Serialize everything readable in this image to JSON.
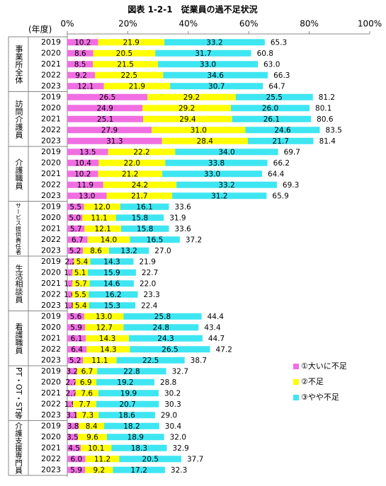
{
  "chart_data": {
    "type": "bar",
    "orientation": "horizontal",
    "stacked": true,
    "title": "図表 1-2-1　従業員の過不足状況",
    "category_label": "(年度)",
    "xlim": [
      0,
      100
    ],
    "xticks": [
      {
        "value": 0,
        "label": "0%"
      },
      {
        "value": 20,
        "label": "20%"
      },
      {
        "value": 40,
        "label": "40%"
      },
      {
        "value": 60,
        "label": "60%"
      },
      {
        "value": 80,
        "label": "80%"
      },
      {
        "value": 100,
        "label": "100%"
      }
    ],
    "legend": "lower right",
    "series": [
      {
        "name": "①大いに不足",
        "color": "#f06ee2"
      },
      {
        "name": "②不足",
        "color": "#ffff00"
      },
      {
        "name": "③やや不足",
        "color": "#3ee6f2"
      }
    ],
    "groups": [
      {
        "name": "事業所全体",
        "categories": [
          "2019",
          "2020",
          "2021",
          "2022",
          "2023"
        ],
        "series": [
          {
            "values": [
              10.2,
              8.6,
              8.5,
              9.2,
              12.1
            ],
            "value_labels": [
              "10.2",
              "8.6",
              "8.5",
              "9.2",
              "12.1"
            ]
          },
          {
            "values": [
              21.9,
              20.5,
              21.5,
              22.5,
              21.9
            ],
            "value_labels": [
              "21.9",
              "20.5",
              "21.5",
              "22.5",
              "21.9"
            ]
          },
          {
            "values": [
              33.2,
              31.7,
              33.0,
              34.6,
              30.7
            ],
            "value_labels": [
              "33.2",
              "31.7",
              "33.0",
              "34.6",
              "30.7"
            ]
          }
        ],
        "totals": [
          65.3,
          60.8,
          63.0,
          66.3,
          64.7
        ],
        "total_labels": [
          "65.3",
          "60.8",
          "63.0",
          "66.3",
          "64.7"
        ]
      },
      {
        "name": "訪問介護員",
        "categories": [
          "2019",
          "2020",
          "2021",
          "2022",
          "2023"
        ],
        "series": [
          {
            "values": [
              26.5,
              24.9,
              25.1,
              27.9,
              31.3
            ],
            "value_labels": [
              "26.5",
              "24.9",
              "25.1",
              "27.9",
              "31.3"
            ]
          },
          {
            "values": [
              29.2,
              29.2,
              29.4,
              31.0,
              28.4
            ],
            "value_labels": [
              "29.2",
              "29.2",
              "29.4",
              "31.0",
              "28.4"
            ]
          },
          {
            "values": [
              25.5,
              26.0,
              26.1,
              24.6,
              21.7
            ],
            "value_labels": [
              "25.5",
              "26.0",
              "26.1",
              "24.6",
              "21.7"
            ]
          }
        ],
        "totals": [
          81.2,
          80.1,
          80.6,
          83.5,
          81.4
        ],
        "total_labels": [
          "81.2",
          "80.1",
          "80.6",
          "83.5",
          "81.4"
        ]
      },
      {
        "name": "介護職員",
        "categories": [
          "2019",
          "2020",
          "2021",
          "2022",
          "2023"
        ],
        "series": [
          {
            "values": [
              13.5,
              10.4,
              10.2,
              11.9,
              13.0
            ],
            "value_labels": [
              "13.5",
              "10.4",
              "10.2",
              "11.9",
              "13.0"
            ]
          },
          {
            "values": [
              22.2,
              22.0,
              21.2,
              24.2,
              21.7
            ],
            "value_labels": [
              "22.2",
              "22.0",
              "21.2",
              "24.2",
              "21.7"
            ]
          },
          {
            "values": [
              34.0,
              33.8,
              33.0,
              33.2,
              31.2
            ],
            "value_labels": [
              "34.0",
              "33.8",
              "33.0",
              "33.2",
              "31.2"
            ]
          }
        ],
        "totals": [
          69.7,
          66.2,
          64.4,
          69.3,
          65.9
        ],
        "total_labels": [
          "69.7",
          "66.2",
          "64.4",
          "69.3",
          "65.9"
        ]
      },
      {
        "name": "サービス提供責任者",
        "categories": [
          "2019",
          "2020",
          "2021",
          "2022",
          "2023"
        ],
        "series": [
          {
            "values": [
              5.5,
              5.0,
              5.7,
              6.7,
              5.2
            ],
            "value_labels": [
              "5.5",
              "5.0",
              "5.7",
              "6.7",
              "5.2"
            ]
          },
          {
            "values": [
              12.0,
              11.1,
              12.1,
              14.0,
              8.6
            ],
            "value_labels": [
              "12.0",
              "11.1",
              "12.1",
              "14.0",
              "8.6"
            ]
          },
          {
            "values": [
              16.1,
              15.8,
              15.8,
              16.5,
              13.2
            ],
            "value_labels": [
              "16.1",
              "15.8",
              "15.8",
              "16.5",
              "13.2"
            ]
          }
        ],
        "totals": [
          33.6,
          31.9,
          33.6,
          37.2,
          27.0
        ],
        "total_labels": [
          "33.6",
          "31.9",
          "33.6",
          "37.2",
          "27.0"
        ]
      },
      {
        "name": "生活相談員",
        "categories": [
          "2019",
          "2020",
          "2021",
          "2022",
          "2023"
        ],
        "series": [
          {
            "values": [
              2.2,
              1.7,
              1.7,
              1.6,
              1.8
            ],
            "value_labels": [
              "2.2",
              "1.7",
              "1.7",
              "1.6",
              "1.8"
            ]
          },
          {
            "values": [
              5.4,
              5.1,
              5.7,
              5.5,
              5.4
            ],
            "value_labels": [
              "5.4",
              "5.1",
              "5.7",
              "5.5",
              "5.4"
            ]
          },
          {
            "values": [
              14.3,
              15.9,
              14.6,
              16.2,
              15.3
            ],
            "value_labels": [
              "14.3",
              "15.9",
              "14.6",
              "16.2",
              "15.3"
            ]
          }
        ],
        "totals": [
          21.9,
          22.7,
          22.0,
          23.3,
          22.4
        ],
        "total_labels": [
          "21.9",
          "22.7",
          "22.0",
          "23.3",
          "22.4"
        ]
      },
      {
        "name": "看護職員",
        "categories": [
          "2019",
          "2020",
          "2021",
          "2022",
          "2023"
        ],
        "series": [
          {
            "values": [
              5.6,
              5.9,
              6.1,
              6.4,
              5.2
            ],
            "value_labels": [
              "5.6",
              "5.9",
              "6.1",
              "6.4",
              "5.2"
            ]
          },
          {
            "values": [
              13.0,
              12.7,
              14.3,
              14.3,
              11.1
            ],
            "value_labels": [
              "13.0",
              "12.7",
              "14.3",
              "14.3",
              "11.1"
            ]
          },
          {
            "values": [
              25.8,
              24.8,
              24.3,
              26.5,
              22.5
            ],
            "value_labels": [
              "25.8",
              "24.8",
              "24.3",
              "26.5",
              "22.5"
            ]
          }
        ],
        "totals": [
          44.4,
          43.4,
          44.7,
          47.2,
          38.7
        ],
        "total_labels": [
          "44.4",
          "43.4",
          "44.7",
          "47.2",
          "38.7"
        ]
      },
      {
        "name": "PT・OT・ST等",
        "categories": [
          "2019",
          "2020",
          "2021",
          "2022",
          "2023"
        ],
        "series": [
          {
            "values": [
              3.2,
              2.7,
              2.7,
              1.9,
              3.1
            ],
            "value_labels": [
              "3.2",
              "2.7",
              "2.7",
              "1.9",
              "3.1"
            ]
          },
          {
            "values": [
              6.7,
              6.9,
              7.6,
              7.7,
              7.3
            ],
            "value_labels": [
              "6.7",
              "6.9",
              "7.6",
              "7.7",
              "7.3"
            ]
          },
          {
            "values": [
              22.8,
              19.2,
              19.9,
              20.7,
              18.6
            ],
            "value_labels": [
              "22.8",
              "19.2",
              "19.9",
              "20.7",
              "18.6"
            ]
          }
        ],
        "totals": [
          32.7,
          28.8,
          30.2,
          30.3,
          29.0
        ],
        "total_labels": [
          "32.7",
          "28.8",
          "30.2",
          "30.3",
          "29.0"
        ]
      },
      {
        "name": "介護支援専門員",
        "categories": [
          "2019",
          "2020",
          "2021",
          "2022",
          "2023"
        ],
        "series": [
          {
            "values": [
              3.8,
              3.5,
              4.5,
              6.0,
              5.9
            ],
            "value_labels": [
              "3.8",
              "3.5",
              "4.5",
              "6.0",
              "5.9"
            ]
          },
          {
            "values": [
              8.4,
              9.6,
              10.1,
              11.2,
              9.2
            ],
            "value_labels": [
              "8.4",
              "9.6",
              "10.1",
              "11.2",
              "9.2"
            ]
          },
          {
            "values": [
              18.2,
              18.9,
              18.3,
              20.5,
              17.2
            ],
            "value_labels": [
              "18.2",
              "18.9",
              "18.3",
              "20.5",
              "17.2"
            ]
          }
        ],
        "totals": [
          30.4,
          32.0,
          32.9,
          37.7,
          32.3
        ],
        "total_labels": [
          "30.4",
          "32.0",
          "32.9",
          "37.7",
          "32.3"
        ]
      }
    ]
  }
}
